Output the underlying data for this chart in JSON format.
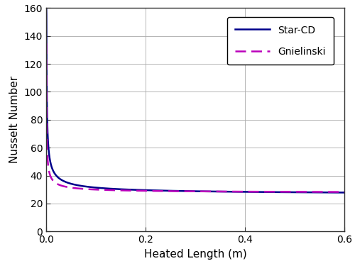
{
  "xlabel": "Heated Length (m)",
  "ylabel": "Nusselt Number",
  "xlim": [
    0,
    0.6
  ],
  "ylim": [
    0,
    160
  ],
  "xticks": [
    0,
    0.2,
    0.4,
    0.6
  ],
  "yticks": [
    0,
    20,
    40,
    60,
    80,
    100,
    120,
    140,
    160
  ],
  "star_cd_color": "#00008B",
  "gnielinski_color": "#BB00BB",
  "star_cd_label": "Star-CD",
  "gnielinski_label": "Gnielinski",
  "background_color": "#ffffff",
  "legend_fontsize": 10,
  "axis_label_fontsize": 11,
  "tick_fontsize": 10,
  "star_cd_A": 1.35,
  "star_cd_n": 0.6,
  "star_cd_C": 26.0,
  "gnie_A": 0.55,
  "gnie_n": 0.65,
  "gnie_C": 27.5
}
